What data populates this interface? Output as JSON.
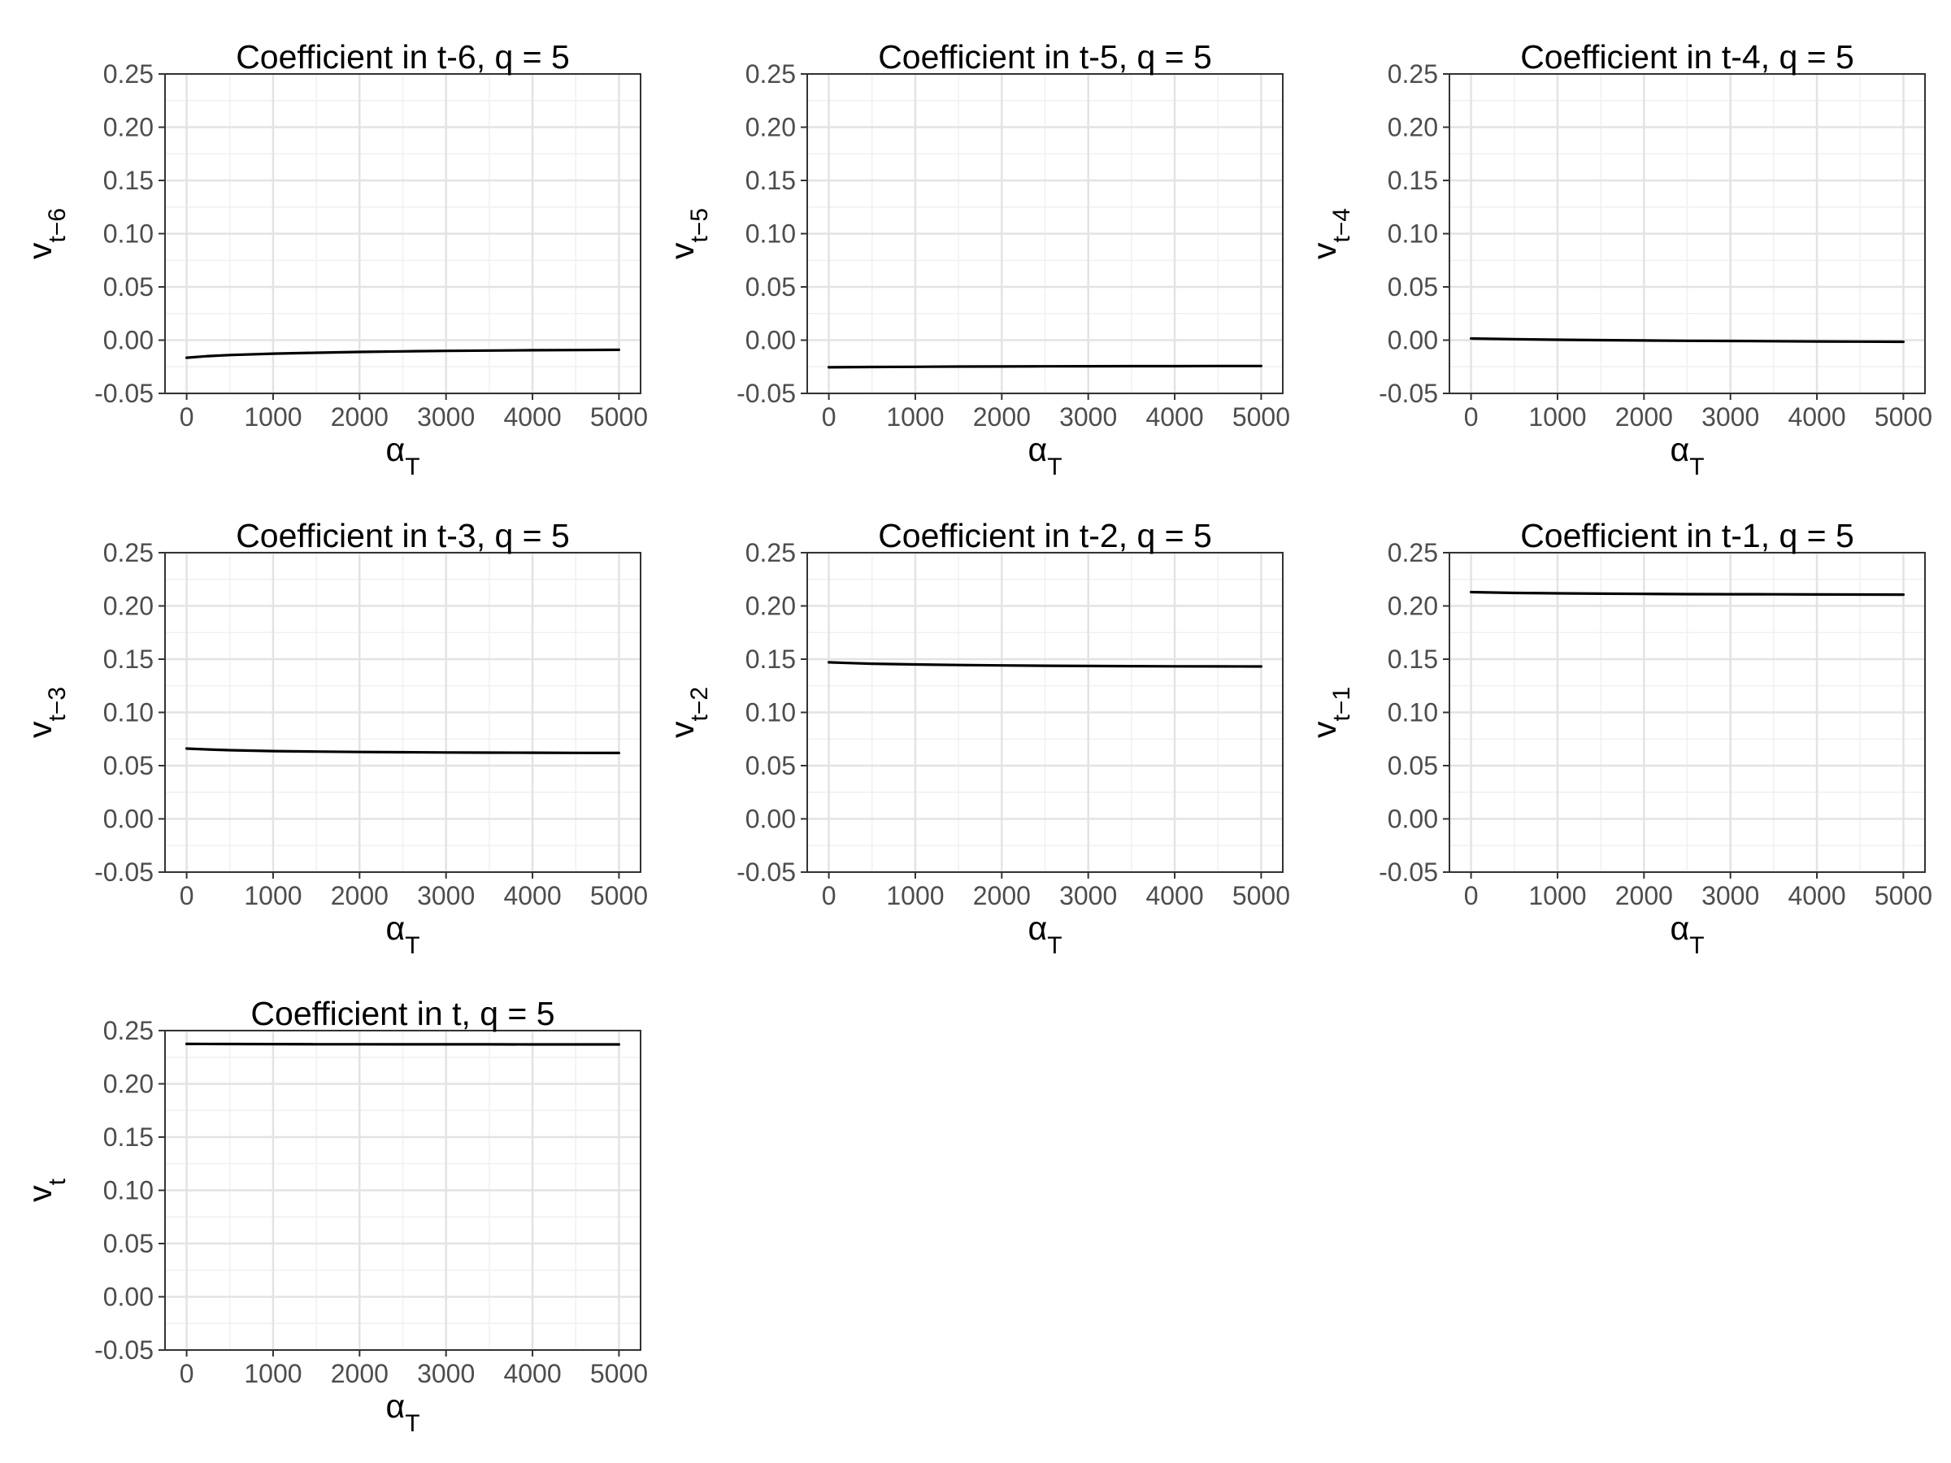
{
  "chart_data": [
    {
      "type": "line",
      "title": "Coefficient in t-6, q = 5",
      "xlabel": {
        "base": "α",
        "sub": "T"
      },
      "ylabel": {
        "base": "v",
        "sub": "t−6"
      },
      "xlim": [
        -250,
        5250
      ],
      "ylim": [
        -0.05,
        0.25
      ],
      "xticks": [
        "0",
        "1000",
        "2000",
        "3000",
        "4000",
        "5000"
      ],
      "yticks": [
        "-0.05",
        "0.00",
        "0.05",
        "0.10",
        "0.15",
        "0.20",
        "0.25"
      ],
      "grid": true,
      "series": [
        {
          "x": [
            0,
            250,
            500,
            1000,
            1500,
            2000,
            2500,
            3000,
            3500,
            4000,
            4500,
            5000
          ],
          "values": [
            -0.0165,
            -0.015,
            -0.014,
            -0.0127,
            -0.0118,
            -0.0111,
            -0.0105,
            -0.0101,
            -0.0098,
            -0.0095,
            -0.0093,
            -0.0091
          ]
        }
      ]
    },
    {
      "type": "line",
      "title": "Coefficient in t-5, q = 5",
      "xlabel": {
        "base": "α",
        "sub": "T"
      },
      "ylabel": {
        "base": "v",
        "sub": "t−5"
      },
      "xlim": [
        -250,
        5250
      ],
      "ylim": [
        -0.05,
        0.25
      ],
      "xticks": [
        "0",
        "1000",
        "2000",
        "3000",
        "4000",
        "5000"
      ],
      "yticks": [
        "-0.05",
        "0.00",
        "0.05",
        "0.10",
        "0.15",
        "0.20",
        "0.25"
      ],
      "grid": true,
      "series": [
        {
          "x": [
            0,
            500,
            1000,
            1500,
            2000,
            2500,
            3000,
            3500,
            4000,
            4500,
            5000
          ],
          "values": [
            -0.0255,
            -0.0252,
            -0.025,
            -0.0248,
            -0.0247,
            -0.0246,
            -0.0245,
            -0.0244,
            -0.0244,
            -0.0243,
            -0.0243
          ]
        }
      ]
    },
    {
      "type": "line",
      "title": "Coefficient in t-4, q = 5",
      "xlabel": {
        "base": "α",
        "sub": "T"
      },
      "ylabel": {
        "base": "v",
        "sub": "t−4"
      },
      "xlim": [
        -250,
        5250
      ],
      "ylim": [
        -0.05,
        0.25
      ],
      "xticks": [
        "0",
        "1000",
        "2000",
        "3000",
        "4000",
        "5000"
      ],
      "yticks": [
        "-0.05",
        "0.00",
        "0.05",
        "0.10",
        "0.15",
        "0.20",
        "0.25"
      ],
      "grid": true,
      "series": [
        {
          "x": [
            0,
            500,
            1000,
            1500,
            2000,
            2500,
            3000,
            3500,
            4000,
            4500,
            5000
          ],
          "values": [
            0.0015,
            0.0009,
            0.0004,
            0.0,
            -0.0003,
            -0.0006,
            -0.0008,
            -0.001,
            -0.0012,
            -0.0014,
            -0.0015
          ]
        }
      ]
    },
    {
      "type": "line",
      "title": "Coefficient in t-3, q = 5",
      "xlabel": {
        "base": "α",
        "sub": "T"
      },
      "ylabel": {
        "base": "v",
        "sub": "t−3"
      },
      "xlim": [
        -250,
        5250
      ],
      "ylim": [
        -0.05,
        0.25
      ],
      "xticks": [
        "0",
        "1000",
        "2000",
        "3000",
        "4000",
        "5000"
      ],
      "yticks": [
        "-0.05",
        "0.00",
        "0.05",
        "0.10",
        "0.15",
        "0.20",
        "0.25"
      ],
      "grid": true,
      "series": [
        {
          "x": [
            0,
            250,
            500,
            1000,
            1500,
            2000,
            2500,
            3000,
            3500,
            4000,
            4500,
            5000
          ],
          "values": [
            0.066,
            0.0652,
            0.0645,
            0.0637,
            0.0632,
            0.0628,
            0.0626,
            0.0624,
            0.0622,
            0.0621,
            0.062,
            0.0619
          ]
        }
      ]
    },
    {
      "type": "line",
      "title": "Coefficient in t-2, q = 5",
      "xlabel": {
        "base": "α",
        "sub": "T"
      },
      "ylabel": {
        "base": "v",
        "sub": "t−2"
      },
      "xlim": [
        -250,
        5250
      ],
      "ylim": [
        -0.05,
        0.25
      ],
      "xticks": [
        "0",
        "1000",
        "2000",
        "3000",
        "4000",
        "5000"
      ],
      "yticks": [
        "-0.05",
        "0.00",
        "0.05",
        "0.10",
        "0.15",
        "0.20",
        "0.25"
      ],
      "grid": true,
      "series": [
        {
          "x": [
            0,
            250,
            500,
            1000,
            1500,
            2000,
            2500,
            3000,
            3500,
            4000,
            4500,
            5000
          ],
          "values": [
            0.147,
            0.1463,
            0.1457,
            0.145,
            0.1445,
            0.1441,
            0.1438,
            0.1436,
            0.1434,
            0.1433,
            0.1432,
            0.1431
          ]
        }
      ]
    },
    {
      "type": "line",
      "title": "Coefficient in t-1, q = 5",
      "xlabel": {
        "base": "α",
        "sub": "T"
      },
      "ylabel": {
        "base": "v",
        "sub": "t−1"
      },
      "xlim": [
        -250,
        5250
      ],
      "ylim": [
        -0.05,
        0.25
      ],
      "xticks": [
        "0",
        "1000",
        "2000",
        "3000",
        "4000",
        "5000"
      ],
      "yticks": [
        "-0.05",
        "0.00",
        "0.05",
        "0.10",
        "0.15",
        "0.20",
        "0.25"
      ],
      "grid": true,
      "series": [
        {
          "x": [
            0,
            250,
            500,
            1000,
            1500,
            2000,
            2500,
            3000,
            3500,
            4000,
            4500,
            5000
          ],
          "values": [
            0.213,
            0.2126,
            0.2122,
            0.2118,
            0.2115,
            0.2113,
            0.2111,
            0.211,
            0.2109,
            0.2108,
            0.2107,
            0.2106
          ]
        }
      ]
    },
    {
      "type": "line",
      "title": "Coefficient in t, q = 5",
      "xlabel": {
        "base": "α",
        "sub": "T"
      },
      "ylabel": {
        "base": "v",
        "sub": "t"
      },
      "xlim": [
        -250,
        5250
      ],
      "ylim": [
        -0.05,
        0.25
      ],
      "xticks": [
        "0",
        "1000",
        "2000",
        "3000",
        "4000",
        "5000"
      ],
      "yticks": [
        "-0.05",
        "0.00",
        "0.05",
        "0.10",
        "0.15",
        "0.20",
        "0.25"
      ],
      "grid": true,
      "series": [
        {
          "x": [
            0,
            500,
            1000,
            1500,
            2000,
            2500,
            3000,
            3500,
            4000,
            4500,
            5000
          ],
          "values": [
            0.2375,
            0.2374,
            0.2373,
            0.2372,
            0.2372,
            0.2371,
            0.2371,
            0.2371,
            0.237,
            0.237,
            0.237
          ]
        }
      ]
    }
  ]
}
